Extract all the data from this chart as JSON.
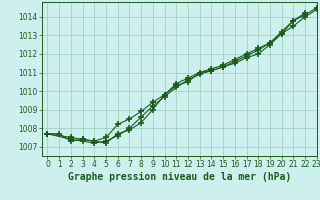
{
  "xlabel": "Graphe pression niveau de la mer (hPa)",
  "xlim": [
    -0.5,
    23
  ],
  "ylim": [
    1006.5,
    1014.8
  ],
  "yticks": [
    1007,
    1008,
    1009,
    1010,
    1011,
    1012,
    1013,
    1014
  ],
  "xticks": [
    0,
    1,
    2,
    3,
    4,
    5,
    6,
    7,
    8,
    9,
    10,
    11,
    12,
    13,
    14,
    15,
    16,
    17,
    18,
    19,
    20,
    21,
    22,
    23
  ],
  "bg_color": "#cdf0ee",
  "grid_color": "#99ccbb",
  "line_color": "#1a5c1a",
  "series": [
    {
      "x": [
        0,
        1,
        2,
        3,
        4,
        5,
        6,
        7,
        8,
        9,
        10,
        11,
        12,
        13,
        14,
        15,
        16,
        17,
        18,
        19,
        20,
        21,
        22
      ],
      "y": [
        1007.7,
        1007.7,
        1007.3,
        1007.4,
        1007.3,
        1007.2,
        1007.7,
        1007.9,
        1008.3,
        1009.0,
        1009.8,
        1010.3,
        1010.5,
        1011.0,
        1011.1,
        1011.3,
        1011.5,
        1011.8,
        1012.0,
        1012.5,
        1013.1,
        1013.8,
        1014.2
      ]
    },
    {
      "x": [
        0,
        2,
        3,
        4,
        5,
        6,
        7,
        8,
        9,
        10,
        11,
        12,
        13,
        14,
        15,
        16,
        17,
        18,
        19,
        20,
        21,
        22,
        23
      ],
      "y": [
        1007.7,
        1007.4,
        1007.3,
        1007.2,
        1007.3,
        1007.6,
        1008.0,
        1008.6,
        1009.2,
        1009.7,
        1010.2,
        1010.6,
        1010.9,
        1011.1,
        1011.3,
        1011.6,
        1011.9,
        1012.2,
        1012.6,
        1013.1,
        1013.5,
        1014.0,
        1014.4
      ]
    },
    {
      "x": [
        0,
        2,
        3,
        4,
        5,
        6,
        7,
        8,
        9,
        10,
        11,
        12,
        13,
        14,
        15,
        16,
        17,
        18,
        19,
        20,
        21,
        22,
        23
      ],
      "y": [
        1007.7,
        1007.5,
        1007.4,
        1007.3,
        1007.5,
        1008.2,
        1008.5,
        1008.9,
        1009.4,
        1009.8,
        1010.4,
        1010.7,
        1011.0,
        1011.2,
        1011.4,
        1011.7,
        1012.0,
        1012.3,
        1012.6,
        1013.2,
        1013.8,
        1014.1,
        1014.5
      ]
    }
  ],
  "marker": "+",
  "markersize": 4,
  "markeredgewidth": 1.2,
  "linewidth": 0.8,
  "xlabel_fontsize": 7,
  "tick_fontsize": 5.5
}
